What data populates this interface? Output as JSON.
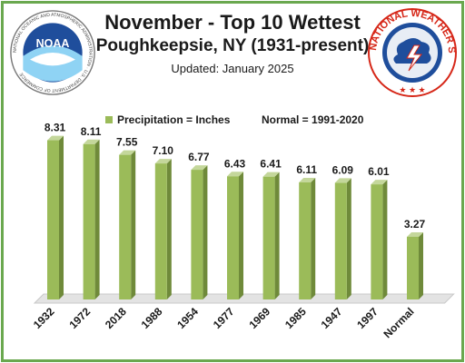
{
  "header": {
    "title": "November - Top 10 Wettest",
    "subtitle": "Poughkeepsie, NY (1931-present)",
    "updated": "Updated: January 2025"
  },
  "logos": {
    "noaa": {
      "text": "NOAA",
      "ring_text": "NATIONAL OCEANIC AND ATMOSPHERIC ADMINISTRATION · U.S. DEPARTMENT OF COMMERCE"
    },
    "nws": {
      "ring_text": "NATIONAL WEATHER SERVICE"
    }
  },
  "legend": {
    "series": "Precipitation = Inches",
    "normal": "Normal = 1991-2020"
  },
  "colors": {
    "bar_front": "#9bbb59",
    "bar_side": "#6f8a3a",
    "bar_top": "#c4d79b",
    "floor": "#e3e3e3",
    "frame": "#6aa84f",
    "noaa_blue": "#1f4e9c",
    "nws_red": "#d62718"
  },
  "chart_data": {
    "type": "bar",
    "title": "November - Top 10 Wettest",
    "subtitle": "Poughkeepsie, NY (1931-present)",
    "categories": [
      "1932",
      "1972",
      "2018",
      "1988",
      "1954",
      "1977",
      "1969",
      "1985",
      "1947",
      "1997",
      "Normal"
    ],
    "values": [
      8.31,
      8.11,
      7.55,
      7.1,
      6.77,
      6.43,
      6.41,
      6.11,
      6.09,
      6.01,
      3.27
    ],
    "value_labels": [
      "8.31",
      "8.11",
      "7.55",
      "7.10",
      "6.77",
      "6.43",
      "6.41",
      "6.11",
      "6.09",
      "6.01",
      "3.27"
    ],
    "ylim": [
      0,
      9
    ],
    "grid": false,
    "legend_position": "top-left",
    "xlabel": "",
    "ylabel": ""
  }
}
